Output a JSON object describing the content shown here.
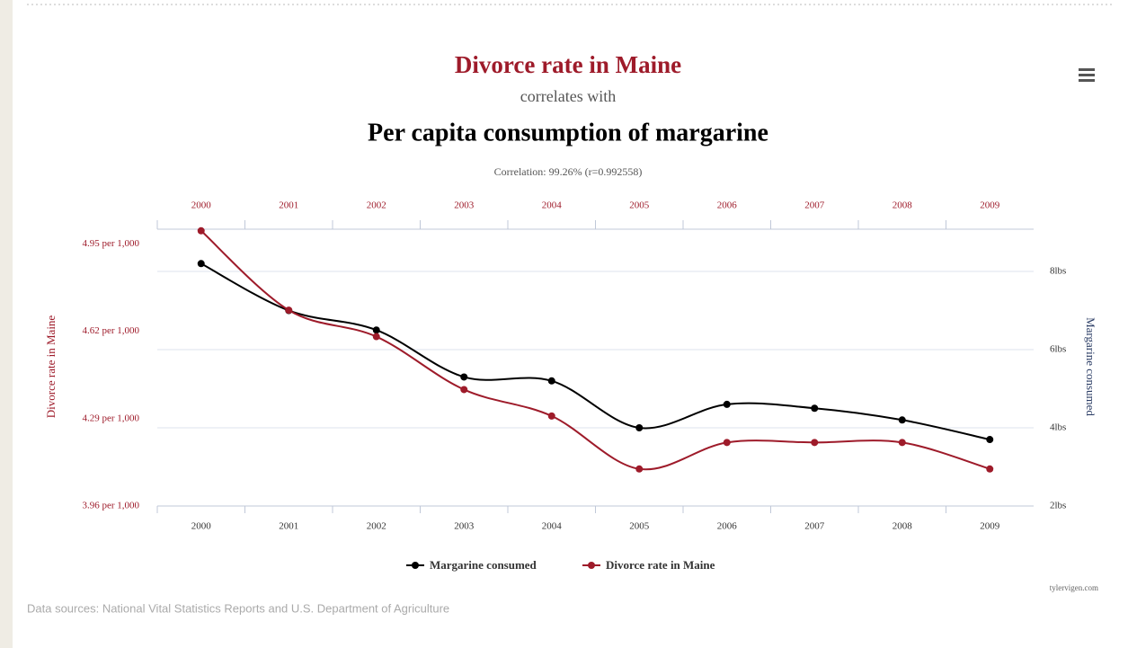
{
  "chart_data": {
    "type": "line",
    "title": "Divorce rate in Maine",
    "subtitle": "correlates with",
    "title2": "Per capita consumption of margarine",
    "correlation": "Correlation: 99.26% (r=0.992558)",
    "ylabel": "Divorce rate in Maine",
    "y2label": "Margarine consumed",
    "categories": [
      "2000",
      "2001",
      "2002",
      "2003",
      "2004",
      "2005",
      "2006",
      "2007",
      "2008",
      "2009"
    ],
    "series": [
      {
        "name": "Margarine consumed",
        "color": "#000000",
        "axis": "y2",
        "values": [
          8.2,
          7,
          6.5,
          5.3,
          5.2,
          4,
          4.6,
          4.5,
          4.2,
          3.7
        ]
      },
      {
        "name": "Divorce rate in Maine",
        "color": "#9e1b2a",
        "values": [
          5.0,
          4.7,
          4.6,
          4.4,
          4.3,
          4.1,
          4.2,
          4.2,
          4.2,
          4.1
        ]
      }
    ],
    "ylim": [
      3.96,
      5.04
    ],
    "yticks": [
      {
        "value": 3.96,
        "label": "3.96 per 1,000"
      },
      {
        "value": 4.29,
        "label": "4.29 per 1,000"
      },
      {
        "value": 4.62,
        "label": "4.62 per 1,000"
      },
      {
        "value": 4.95,
        "label": "4.95 per 1,000"
      }
    ],
    "y2lim": [
      2,
      9.31
    ],
    "y2ticks": [
      {
        "value": 2,
        "label": "2lbs"
      },
      {
        "value": 4,
        "label": "4lbs"
      },
      {
        "value": 6,
        "label": "6lbs"
      },
      {
        "value": 8,
        "label": "8lbs"
      }
    ],
    "grid": true,
    "legend": "bottom",
    "source": "Data sources: National Vital Statistics Reports and U.S. Department of Agriculture",
    "credit": "tylervigen.com"
  }
}
